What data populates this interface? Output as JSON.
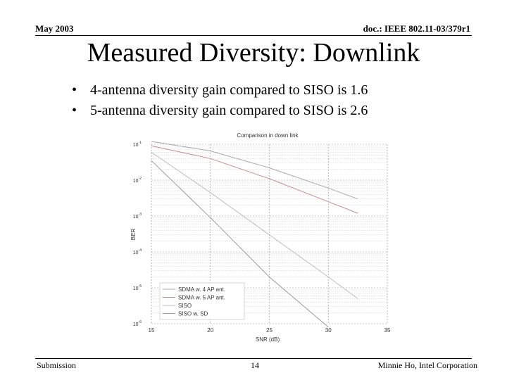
{
  "header": {
    "date": "May 2003",
    "doc": "doc.: IEEE 802.11-03/379r1"
  },
  "title": "Measured Diversity: Downlink",
  "bullets": [
    "4-antenna diversity gain compared to SISO is 1.6",
    "5-antenna diversity gain compared to SISO is 2.6"
  ],
  "footer": {
    "left": "Submission",
    "page": "14",
    "right": "Minnie Ho, Intel Corporation"
  },
  "chart_data": {
    "type": "line",
    "title": "Comparison in down link",
    "xlabel": "SNR (dB)",
    "ylabel": "BER",
    "xlim": [
      15,
      35
    ],
    "ylim": [
      1e-06,
      0.1
    ],
    "yscale": "log",
    "grid": true,
    "legend_position": "bottom-left",
    "x_ticks": [
      "15",
      "20",
      "25",
      "30",
      "35"
    ],
    "y_ticks": [
      {
        "base": "10",
        "exp": "-1"
      },
      {
        "base": "10",
        "exp": "-2"
      },
      {
        "base": "10",
        "exp": "-3"
      },
      {
        "base": "10",
        "exp": "-4"
      },
      {
        "base": "10",
        "exp": "-5"
      },
      {
        "base": "10",
        "exp": "-6"
      }
    ],
    "series": [
      {
        "name": "SDMA w. 4 AP ant.",
        "color": "#a8a8a8",
        "x": [
          15,
          20,
          25,
          30,
          32.5
        ],
        "y": [
          0.12,
          0.065,
          0.022,
          0.006,
          0.003
        ]
      },
      {
        "name": "SDMA w. 5 AP ant.",
        "color": "#c98a8a",
        "x": [
          15,
          20,
          25,
          30,
          32.5
        ],
        "y": [
          0.09,
          0.04,
          0.011,
          0.0025,
          0.0012
        ]
      },
      {
        "name": "SISO",
        "color": "#bdbdbd",
        "x": [
          15,
          20,
          25,
          30,
          32.5
        ],
        "y": [
          0.06,
          0.0045,
          0.0003,
          2e-05,
          5e-06
        ]
      },
      {
        "name": "SISO w. SD",
        "color": "#9a9a9a",
        "x": [
          15,
          20,
          25,
          30
        ],
        "y": [
          0.035,
          0.0009,
          2e-05,
          8e-07
        ]
      }
    ]
  }
}
